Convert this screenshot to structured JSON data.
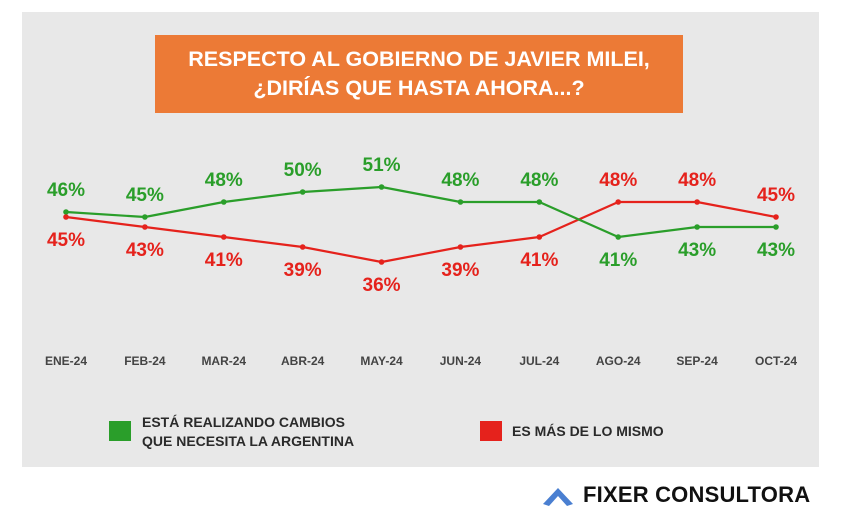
{
  "title": {
    "line1": "RESPECTO AL GOBIERNO DE JAVIER MILEI,",
    "line2": "¿DIRÍAS QUE HASTA AHORA...?"
  },
  "colors": {
    "background_panel": "#e8e8e8",
    "title_bg": "#ec7a36",
    "series_green": "#2a9e2a",
    "series_red": "#e5221c",
    "brand_icon": "#4a7fd1"
  },
  "chart_data": {
    "type": "line",
    "title": "RESPECTO AL GOBIERNO DE JAVIER MILEI, ¿DIRÍAS QUE HASTA AHORA...?",
    "xlabel": "",
    "ylabel": "",
    "categories": [
      "ENE-24",
      "FEB-24",
      "MAR-24",
      "ABR-24",
      "MAY-24",
      "JUN-24",
      "JUL-24",
      "AGO-24",
      "SEP-24",
      "OCT-24"
    ],
    "series": [
      {
        "name": "ESTÁ REALIZANDO CAMBIOS QUE NECESITA LA ARGENTINA",
        "color": "#2a9e2a",
        "values": [
          46,
          45,
          48,
          50,
          51,
          48,
          48,
          41,
          43,
          43
        ],
        "labels": [
          "46%",
          "45%",
          "48%",
          "50%",
          "51%",
          "48%",
          "48%",
          "41%",
          "43%",
          "43%"
        ]
      },
      {
        "name": "ES MÁS DE LO MISMO",
        "color": "#e5221c",
        "values": [
          45,
          43,
          41,
          39,
          36,
          39,
          41,
          48,
          48,
          45
        ],
        "labels": [
          "45%",
          "43%",
          "41%",
          "39%",
          "36%",
          "39%",
          "41%",
          "48%",
          "48%",
          "45%"
        ]
      }
    ],
    "ylim": [
      30,
      55
    ],
    "grid": false,
    "legend": "bottom"
  },
  "legend": {
    "green_line1": "ESTÁ REALIZANDO CAMBIOS",
    "green_line2": "QUE NECESITA LA ARGENTINA",
    "red_line1": "ES MÁS DE LO MISMO"
  },
  "brand": {
    "name": "FIXER CONSULTORA",
    "icon": "chevron-up-icon"
  }
}
